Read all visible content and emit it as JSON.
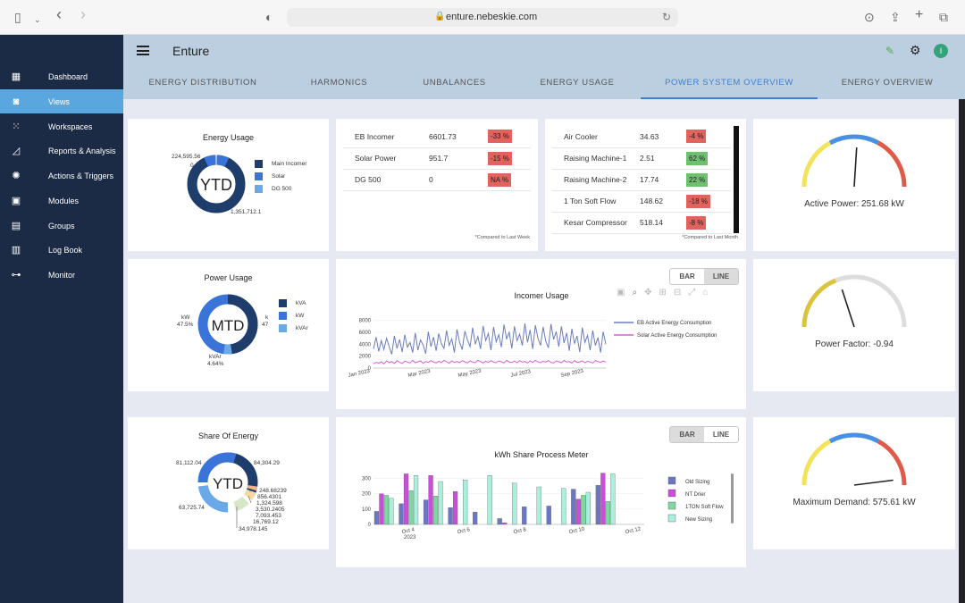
{
  "browser": {
    "url": "enture.nebeskie.com"
  },
  "app": {
    "title": "Enture",
    "avatar_initial": "I"
  },
  "sidebar": {
    "items": [
      {
        "label": "Dashboard",
        "icon": "dashboard-icon"
      },
      {
        "label": "Views",
        "icon": "views-icon",
        "active": true
      },
      {
        "label": "Workspaces",
        "icon": "workspaces-icon"
      },
      {
        "label": "Reports & Analysis",
        "icon": "reports-icon"
      },
      {
        "label": "Actions & Triggers",
        "icon": "actions-icon"
      },
      {
        "label": "Modules",
        "icon": "modules-icon"
      },
      {
        "label": "Groups",
        "icon": "groups-icon"
      },
      {
        "label": "Log Book",
        "icon": "logbook-icon"
      },
      {
        "label": "Monitor",
        "icon": "monitor-icon"
      }
    ]
  },
  "tabs": [
    {
      "label": "ENERGY DISTRIBUTION"
    },
    {
      "label": "HARMONICS"
    },
    {
      "label": "UNBALANCES"
    },
    {
      "label": "ENERGY USAGE"
    },
    {
      "label": "POWER SYSTEM OVERVIEW",
      "active": true
    },
    {
      "label": "ENERGY OVERVIEW"
    }
  ],
  "energy_usage": {
    "title": "Energy Usage",
    "center": "YTD",
    "labels": [
      "224,595.56",
      "0",
      "1,351,712.1"
    ],
    "legend": [
      "Main Incomer",
      "Solar",
      "DG 500"
    ],
    "colors": [
      "#1f3d6b",
      "#3a74d8",
      "#6aa8e8"
    ]
  },
  "incomers": {
    "rows": [
      {
        "name": "EB Incomer",
        "value": "6601.73",
        "pct": "-33 %",
        "status": "neg"
      },
      {
        "name": "Solar Power",
        "value": "951.7",
        "pct": "-15 %",
        "status": "neg"
      },
      {
        "name": "DG 500",
        "value": "0",
        "pct": "NA %",
        "status": "neg"
      }
    ],
    "footnote": "*Compared to Last Week"
  },
  "machines": {
    "rows": [
      {
        "name": "Air Cooler",
        "value": "34.63",
        "pct": "-4 %",
        "status": "neg"
      },
      {
        "name": "Raising Machine-1",
        "value": "2.51",
        "pct": "62 %",
        "status": "pos"
      },
      {
        "name": "Raising Machine-2",
        "value": "17.74",
        "pct": "22 %",
        "status": "pos"
      },
      {
        "name": "1 Ton Soft Flow",
        "value": "148.62",
        "pct": "-18 %",
        "status": "neg"
      },
      {
        "name": "Kesar Compressor",
        "value": "518.14",
        "pct": "-8 %",
        "status": "neg"
      }
    ],
    "footnote": "*Compared to Last Month"
  },
  "gauges": [
    {
      "label": "Active Power: 251.68 kW",
      "fraction": 0.52
    },
    {
      "label": "Power Factor: -0.94",
      "fraction": 0.4
    },
    {
      "label": "Maximum Demand: 575.61 kW",
      "fraction": 0.96
    }
  ],
  "power_usage": {
    "title": "Power Usage",
    "center": "MTD",
    "labels": [
      "kW",
      "47.5%",
      "k",
      "47",
      "kVAr",
      "4.64%"
    ],
    "legend": [
      "kVA",
      "kW",
      "kVAr"
    ],
    "colors": [
      "#1f3d6b",
      "#3a74d8",
      "#6aa8e8"
    ]
  },
  "share_energy": {
    "title": "Share Of Energy",
    "center": "YTD",
    "labels": [
      "81,112.04",
      "84,304.29",
      "63,725.74",
      "248.68239",
      "856.4301",
      "1,324.598",
      "3,530.2405",
      "7,093.453",
      "16,769.12",
      "34,978.145"
    ]
  },
  "toggle": {
    "bar": "BAR",
    "line": "LINE"
  },
  "chart_data": [
    {
      "type": "line",
      "title": "Incomer Usage",
      "x_ticks": [
        "Jan 2023",
        "Mar 2023",
        "May 2023",
        "Jul 2023",
        "Sep 2023"
      ],
      "y_ticks": [
        "8000",
        "6000",
        "4000",
        "2000",
        "0"
      ],
      "ylim": [
        0,
        9000
      ],
      "series": [
        {
          "name": "EB Active Energy Consumption",
          "color": "#6b7dbf",
          "values": [
            3200,
            5200,
            2800,
            4600,
            3100,
            5000,
            3600,
            2300,
            5400,
            3300,
            4800,
            2700,
            5600,
            3500,
            4300,
            2600,
            5900,
            3000,
            4700,
            3900,
            2400,
            6100,
            3600,
            5200,
            2900,
            5800,
            4100,
            3300,
            6300,
            3800,
            4900,
            2600,
            6500,
            4300,
            3100,
            6200,
            4700,
            3600,
            6800,
            4000,
            5300,
            3200,
            7100,
            4600,
            5800,
            3000,
            6900,
            4400,
            5600,
            3500,
            7300,
            4900,
            6000,
            3300,
            7000,
            4600,
            5700,
            3800,
            7500,
            4300,
            6400,
            3200,
            7200,
            5000,
            3800,
            6900,
            4500,
            3400,
            7400,
            4800,
            6100,
            3600,
            7000,
            4200,
            5900,
            2900,
            6600,
            4100,
            5400,
            2700,
            6800,
            4300,
            5500,
            3000,
            6300,
            3800,
            5100,
            2600,
            6100,
            4000
          ]
        },
        {
          "name": "Solar Active Energy Consumption",
          "color": "#d65fd6",
          "values": [
            700,
            950,
            820,
            1050,
            700,
            1200,
            900,
            1100,
            780,
            1250,
            950,
            800,
            1150,
            1000,
            850,
            1300,
            900,
            1050,
            1200,
            800,
            1100,
            950,
            1250,
            1000,
            850,
            1150,
            900,
            1300,
            1050,
            800,
            1200,
            950,
            1100,
            900,
            1250,
            1050,
            850,
            1200,
            1000,
            900,
            1300,
            1100,
            850,
            1150,
            950,
            1250,
            1000,
            900,
            1200,
            1050,
            850,
            1300,
            1000,
            950,
            1150,
            900,
            1250,
            1000,
            1100,
            850,
            1200,
            950,
            1300,
            1050,
            900,
            1150,
            1000,
            1250,
            950,
            850,
            1200,
            1050,
            900,
            1300,
            1000,
            1100,
            850,
            1250,
            950,
            1050,
            1200,
            900,
            1150,
            1000,
            850,
            1250,
            1100,
            950,
            1200,
            1000
          ]
        }
      ]
    },
    {
      "type": "bar",
      "title": "kWh Share Process Meter",
      "x_ticks": [
        "Oct 4\n2023",
        "Oct 6",
        "Oct 8",
        "Oct 10",
        "Oct 12"
      ],
      "y_ticks": [
        "300",
        "200",
        "100",
        "0"
      ],
      "ylim": [
        0,
        350
      ],
      "categories": [
        "Oct 3",
        "Oct 4",
        "Oct 5",
        "Oct 6",
        "Oct 7",
        "Oct 8",
        "Oct 9",
        "Oct 10",
        "Oct 11",
        "Oct 12",
        "Oct 13"
      ],
      "series": [
        {
          "name": "Old Sizing",
          "color": "#6a78c4",
          "values": [
            85,
            135,
            160,
            110,
            80,
            38,
            115,
            120,
            230,
            255,
            0
          ]
        },
        {
          "name": "NT Drier",
          "color": "#c94fd8",
          "values": [
            200,
            330,
            320,
            215,
            0,
            10,
            0,
            0,
            165,
            335,
            0
          ]
        },
        {
          "name": "1TON Soft Flow",
          "color": "#7fd8a0",
          "values": [
            190,
            220,
            185,
            0,
            0,
            0,
            0,
            0,
            190,
            150,
            0
          ]
        },
        {
          "name": "New Sizing",
          "color": "#a8f0dc",
          "values": [
            170,
            320,
            280,
            290,
            320,
            270,
            245,
            235,
            210,
            330,
            0
          ]
        }
      ]
    }
  ]
}
